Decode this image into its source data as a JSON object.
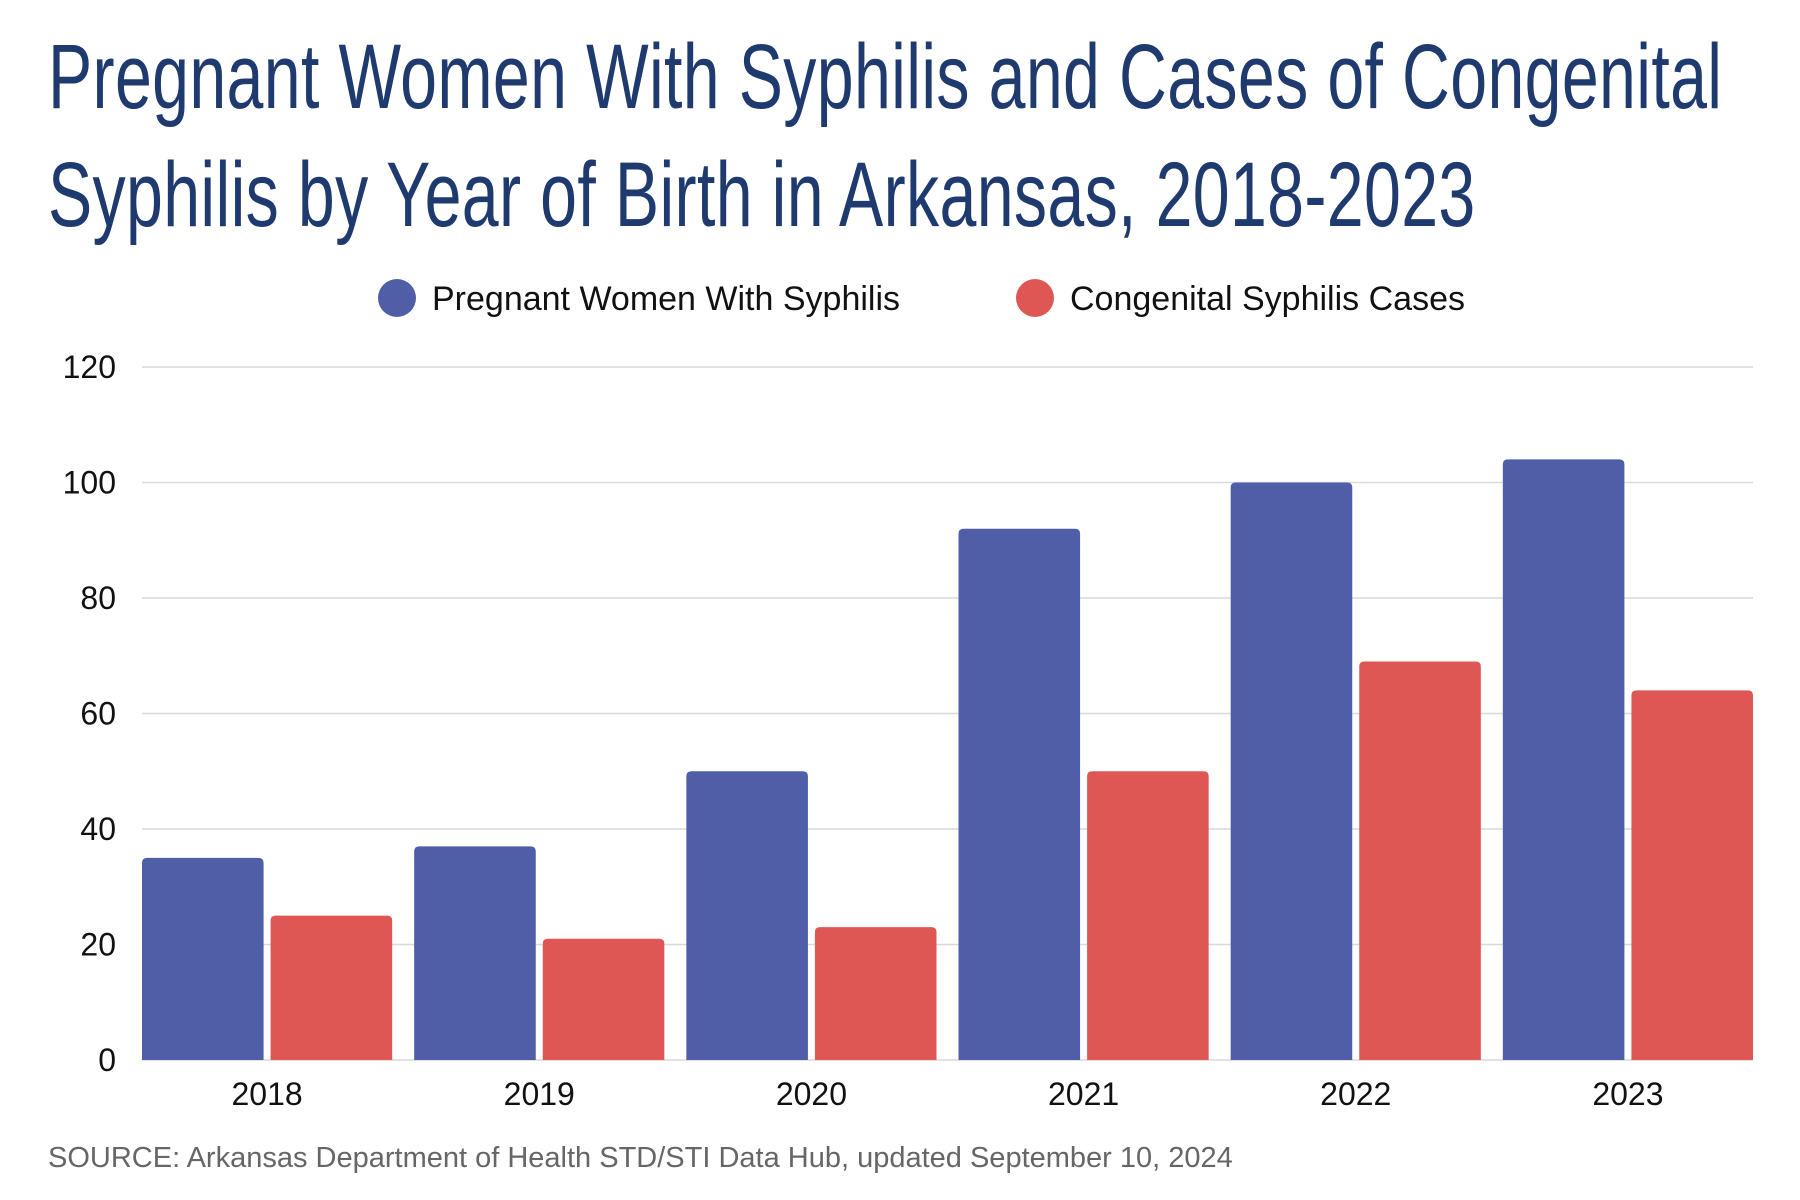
{
  "chart_data": {
    "type": "bar",
    "title": "Pregnant Women With Syphilis and Cases of Congenital Syphilis by Year of Birth in Arkansas, 2018-2023",
    "title_lines": [
      "Pregnant Women With Syphilis and Cases of Congenital",
      "Syphilis by Year of Birth in Arkansas, 2018-2023"
    ],
    "categories": [
      "2018",
      "2019",
      "2020",
      "2021",
      "2022",
      "2023"
    ],
    "series": [
      {
        "name": "Pregnant Women With Syphilis",
        "color": "#4f5ea6",
        "values": [
          35,
          37,
          50,
          92,
          100,
          104
        ]
      },
      {
        "name": "Congenital Syphilis Cases",
        "color": "#de5754",
        "values": [
          25,
          21,
          23,
          50,
          69,
          64
        ]
      }
    ],
    "xlabel": "",
    "ylabel": "",
    "ylim": [
      0,
      120
    ],
    "yticks": [
      "0",
      "20",
      "40",
      "60",
      "80",
      "100",
      "120"
    ],
    "grid": true,
    "legend_position": "top-center",
    "source": "SOURCE: Arkansas Department of Health STD/STI Data Hub, updated September 10, 2024"
  }
}
